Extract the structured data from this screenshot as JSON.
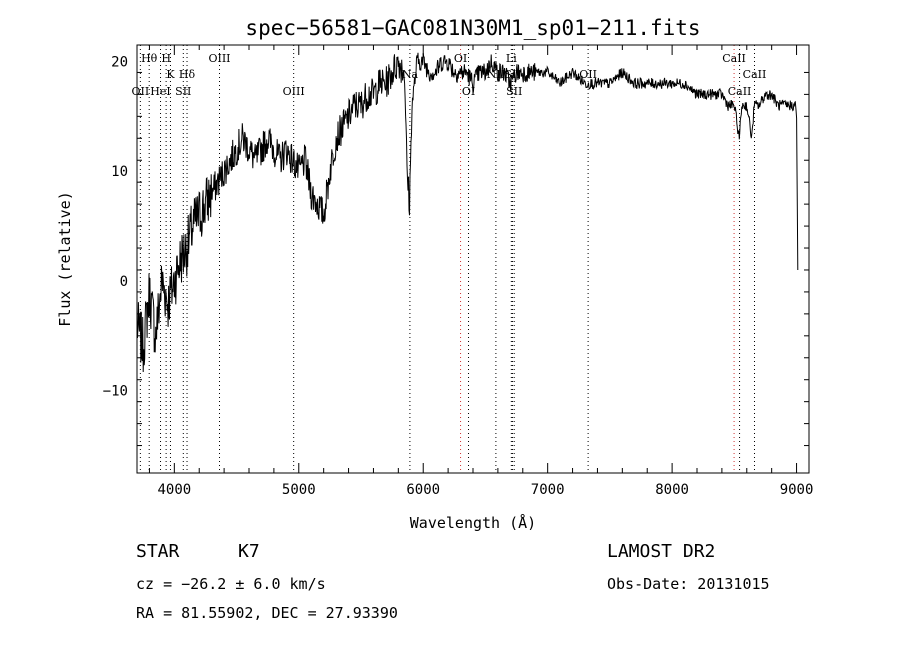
{
  "chart_data": {
    "type": "line",
    "title": "spec−56581−GAC081N30M1_sp01−211.fits",
    "xlabel": "Wavelength (Å)",
    "ylabel": "Flux (relative)",
    "xlim": [
      3700,
      9100
    ],
    "ylim": [
      -17.5,
      21.5
    ],
    "xticks": [
      4000,
      5000,
      6000,
      7000,
      8000,
      9000
    ],
    "xtick_labels": [
      "4000",
      "5000",
      "6000",
      "7000",
      "8000",
      "9000"
    ],
    "yticks": [
      -10,
      0,
      10,
      20
    ],
    "ytick_labels": [
      "−10",
      "0",
      "10",
      "20"
    ],
    "grid": false,
    "series": [
      {
        "x": [
          3700,
          3750,
          3800,
          3850,
          3900,
          3950,
          4000,
          4050,
          4100,
          4150,
          4200,
          4250,
          4300,
          4350,
          4400,
          4450,
          4500,
          4550,
          4600,
          4650,
          4700,
          4750,
          4800,
          4850,
          4900,
          4950,
          5000,
          5050,
          5100,
          5150,
          5200,
          5250,
          5300,
          5350,
          5400,
          5450,
          5500,
          5550,
          5600,
          5650,
          5700,
          5750,
          5800,
          5850,
          5870,
          5890,
          5910,
          5950,
          6000,
          6050,
          6100,
          6150,
          6200,
          6250,
          6300,
          6350,
          6400,
          6450,
          6500,
          6550,
          6600,
          6650,
          6700,
          6750,
          6800,
          6900,
          7000,
          7100,
          7200,
          7300,
          7400,
          7500,
          7600,
          7700,
          7800,
          7900,
          8000,
          8100,
          8200,
          8300,
          8400,
          8450,
          8500,
          8540,
          8560,
          8600,
          8640,
          8660,
          8700,
          8750,
          8800,
          8850,
          8900,
          8950,
          8990,
          9000,
          9010
        ],
        "y": [
          -4,
          -6,
          -1,
          -5,
          0,
          -2,
          0,
          2,
          3,
          5,
          6,
          7,
          8,
          9,
          10,
          11,
          12,
          13,
          12,
          11,
          12,
          13,
          12,
          11,
          12,
          11,
          10,
          11,
          8,
          7,
          6,
          10,
          13,
          14,
          15,
          16,
          16,
          17,
          17,
          18,
          18,
          19,
          20,
          19,
          10,
          7,
          16,
          20,
          20,
          19,
          19,
          20,
          20,
          19,
          19,
          19,
          18,
          19,
          19,
          20,
          19,
          19,
          18,
          19,
          19,
          19,
          19,
          18,
          19,
          18,
          18,
          18,
          19,
          18,
          18,
          18,
          18,
          18,
          17,
          17,
          17,
          16,
          16,
          13,
          16,
          16,
          13,
          16,
          16,
          17,
          17,
          16,
          16,
          16,
          16,
          15,
          1
        ]
      }
    ],
    "lines": [
      {
        "name": "Hθ",
        "x": 3798,
        "row": 1,
        "color": "#000000"
      },
      {
        "name": "OII",
        "x": 3727,
        "row": 3,
        "color": "#000000"
      },
      {
        "name": "HeI",
        "x": 3889,
        "row": 3,
        "color": "#000000"
      },
      {
        "name": "H",
        "x": 3934,
        "row": 1,
        "color": "#000000"
      },
      {
        "name": "K",
        "x": 3969,
        "row": 2,
        "color": "#000000"
      },
      {
        "name": "SII",
        "x": 4072,
        "row": 3,
        "color": "#000000"
      },
      {
        "name": "Hδ",
        "x": 4102,
        "row": 2,
        "color": "#000000"
      },
      {
        "name": "OIII",
        "x": 4363,
        "row": 1,
        "color": "#000000"
      },
      {
        "name": "OIII",
        "x": 4959,
        "row": 3,
        "color": "#000000"
      },
      {
        "name": "Na",
        "x": 5893,
        "row": 2,
        "color": "#000000"
      },
      {
        "name": "OI",
        "x": 6300,
        "row": 1,
        "color": "#d03030"
      },
      {
        "name": "OI",
        "x": 6364,
        "row": 3,
        "color": "#000000"
      },
      {
        "name": "NII",
        "x": 6584,
        "row": 2,
        "color": "#000000"
      },
      {
        "name": "Li",
        "x": 6708,
        "row": 1,
        "color": "#000000"
      },
      {
        "name": "SII",
        "x": 6717,
        "row": 2,
        "color": "#000000"
      },
      {
        "name": "SII",
        "x": 6731,
        "row": 3,
        "color": "#000000"
      },
      {
        "name": "OII",
        "x": 7325,
        "row": 2,
        "color": "#000000"
      },
      {
        "name": "CaII",
        "x": 8498,
        "row": 1,
        "color": "#d03030"
      },
      {
        "name": "CaII",
        "x": 8542,
        "row": 3,
        "color": "#000000"
      },
      {
        "name": "CaII",
        "x": 8662,
        "row": 2,
        "color": "#000000"
      }
    ],
    "line_labels": [
      "Hθ",
      "OII",
      "HeI",
      "H",
      "K",
      "SII",
      "Hδ",
      "OIII",
      "OIII",
      "Na",
      "OI",
      "OI",
      "NII",
      "Li",
      "SII",
      "SII",
      "OII",
      "CaII",
      "CaII",
      "CaII"
    ]
  },
  "info": {
    "class": "STAR",
    "subclass": "K7",
    "survey": "LAMOST DR2",
    "cz": "cz = −26.2 ± 6.0 km/s",
    "obs_date": "Obs-Date: 20131015",
    "radec": "RA =  81.55902, DEC =  27.93390"
  }
}
